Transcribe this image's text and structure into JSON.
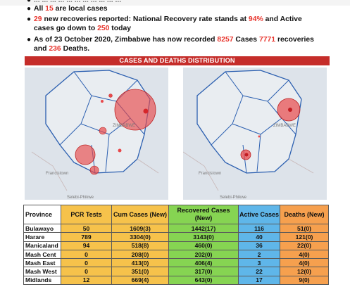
{
  "bullets": [
    {
      "text": "... ... ... ... ... ... ... ... ... ... ...",
      "faded": true
    },
    {
      "parts": [
        {
          "t": "All "
        },
        {
          "t": "15",
          "red": true
        },
        {
          "t": " are local cases"
        }
      ]
    },
    {
      "parts": [
        {
          "t": "29",
          "red": true
        },
        {
          "t": " new recoveries reported: National Recovery rate stands at "
        },
        {
          "t": "94%",
          "red": true
        },
        {
          "t": " and Active cases go down to "
        },
        {
          "t": "250",
          "red": true
        },
        {
          "t": " today"
        }
      ]
    },
    {
      "parts": [
        {
          "t": "As of 23 October 2020, Zimbabwe has now recorded "
        },
        {
          "t": "8257",
          "red": true
        },
        {
          "t": " Cases "
        },
        {
          "t": "7771",
          "red": true
        },
        {
          "t": " recoveries and "
        },
        {
          "t": "236",
          "red": true
        },
        {
          "t": " Deaths."
        }
      ]
    }
  ],
  "section_title": "CASES AND DEATHS DISTRIBUTION",
  "maps": {
    "left": {
      "labels": [
        "ZIMBABWE",
        "Francistown",
        "Selebi-Phikwe"
      ]
    },
    "right": {
      "labels": [
        "ZIMBABWE",
        "Francistown",
        "Selebi-Phikwe"
      ]
    }
  },
  "table": {
    "headers": {
      "province": "Province",
      "pcr": "PCR Tests",
      "cum": "Cum Cases (New)",
      "rec": "Recovered Cases (New)",
      "act": "Active Cases",
      "dea": "Deaths (New)"
    },
    "rows": [
      {
        "province": "Bulawayo",
        "pcr": "50",
        "cum": "1609(3)",
        "rec": "1442(17)",
        "act": "116",
        "dea": "51(0)"
      },
      {
        "province": "Harare",
        "pcr": "789",
        "cum": "3304(0)",
        "rec": "3143(0)",
        "act": "40",
        "dea": "121(0)"
      },
      {
        "province": "Manicaland",
        "pcr": "94",
        "cum": "518(8)",
        "rec": "460(0)",
        "act": "36",
        "dea": "22(0)"
      },
      {
        "province": "Mash Cent",
        "pcr": "0",
        "cum": "208(0)",
        "rec": "202(0)",
        "act": "2",
        "dea": "4(0)"
      },
      {
        "province": "Mash East",
        "pcr": "0",
        "cum": "413(0)",
        "rec": "406(4)",
        "act": "3",
        "dea": "4(0)"
      },
      {
        "province": "Mash West",
        "pcr": "0",
        "cum": "351(0)",
        "rec": "317(0)",
        "act": "22",
        "dea": "12(0)"
      },
      {
        "province": "Midlands",
        "pcr": "12",
        "cum": "669(4)",
        "rec": "643(0)",
        "act": "17",
        "dea": "9(0)"
      }
    ]
  },
  "colors": {
    "band": "#c52d2a",
    "highlight": "#e8352d",
    "bubble": "#e8484a",
    "pcr_cum": "#f6c24b",
    "recovered": "#86d452",
    "active": "#5fb6e9",
    "deaths": "#f6a04e"
  }
}
